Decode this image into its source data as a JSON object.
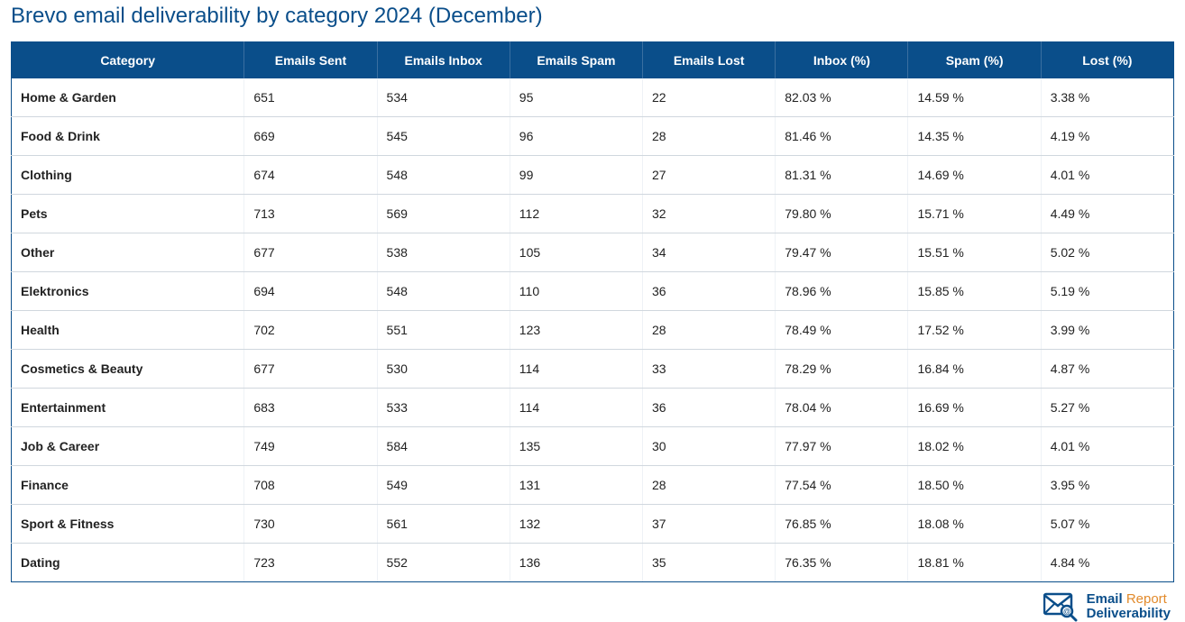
{
  "title": "Brevo email deliverability by category 2024 (December)",
  "table": {
    "columns": [
      "Category",
      "Emails Sent",
      "Emails Inbox",
      "Emails Spam",
      "Emails Lost",
      "Inbox (%)",
      "Spam (%)",
      "Lost (%)"
    ],
    "rows": [
      [
        "Home & Garden",
        "651",
        "534",
        "95",
        "22",
        "82.03 %",
        "14.59 %",
        "3.38 %"
      ],
      [
        "Food & Drink",
        "669",
        "545",
        "96",
        "28",
        "81.46 %",
        "14.35 %",
        "4.19 %"
      ],
      [
        "Clothing",
        "674",
        "548",
        "99",
        "27",
        "81.31 %",
        "14.69 %",
        "4.01 %"
      ],
      [
        "Pets",
        "713",
        "569",
        "112",
        "32",
        "79.80 %",
        "15.71 %",
        "4.49 %"
      ],
      [
        "Other",
        "677",
        "538",
        "105",
        "34",
        "79.47 %",
        "15.51 %",
        "5.02 %"
      ],
      [
        "Elektronics",
        "694",
        "548",
        "110",
        "36",
        "78.96 %",
        "15.85 %",
        "5.19 %"
      ],
      [
        "Health",
        "702",
        "551",
        "123",
        "28",
        "78.49 %",
        "17.52 %",
        "3.99 %"
      ],
      [
        "Cosmetics & Beauty",
        "677",
        "530",
        "114",
        "33",
        "78.29 %",
        "16.84 %",
        "4.87 %"
      ],
      [
        "Entertainment",
        "683",
        "533",
        "114",
        "36",
        "78.04 %",
        "16.69 %",
        "5.27 %"
      ],
      [
        "Job & Career",
        "749",
        "584",
        "135",
        "30",
        "77.97 %",
        "18.02 %",
        "4.01 %"
      ],
      [
        "Finance",
        "708",
        "549",
        "131",
        "28",
        "77.54 %",
        "18.50 %",
        "3.95 %"
      ],
      [
        "Sport & Fitness",
        "730",
        "561",
        "132",
        "37",
        "76.85 %",
        "18.08 %",
        "5.07 %"
      ],
      [
        "Dating",
        "723",
        "552",
        "136",
        "35",
        "76.35 %",
        "18.81 %",
        "4.84 %"
      ]
    ],
    "header_bg": "#0a4e8a",
    "header_fg": "#ffffff",
    "row_border": "#d0d7de",
    "title_color": "#0a4e8a",
    "header_fontsize": 14,
    "cell_fontsize": 14,
    "title_fontsize": 24
  },
  "logo": {
    "line1a": "Email",
    "line1b": "Report",
    "line2": "Deliverability",
    "icon_color": "#0a4e8a",
    "accent_color": "#e28a2b"
  }
}
